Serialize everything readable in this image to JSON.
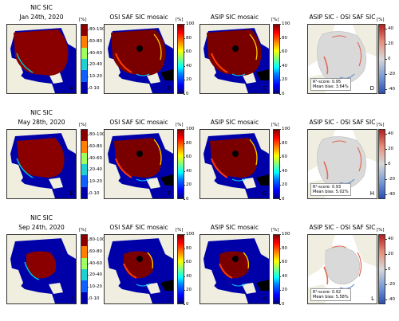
{
  "unit": "[%]",
  "rows": [
    {
      "nic_title": [
        "NIC SIC",
        "Jan 24th, 2020"
      ],
      "osi_title": "OSI SAF SIC mosaic",
      "asip_title": "ASIP SIC mosaic",
      "diff_title": "ASIP SIC - OSI SAF SIC",
      "letters": [
        "A",
        "B",
        "C",
        "D"
      ],
      "r2_label": "R²-score: 0.95",
      "bias_label": "Mean bias: 3.64%"
    },
    {
      "nic_title": [
        "NIC SIC",
        "May 28th, 2020"
      ],
      "osi_title": "OSI SAF SIC mosaic",
      "asip_title": "ASIP SIC mosaic",
      "diff_title": "ASIP SIC - OSI SAF SIC",
      "letters": [
        "E",
        "F",
        "G",
        "H"
      ],
      "r2_label": "R²-score: 0.93",
      "bias_label": "Mean bias: 5.02%"
    },
    {
      "nic_title": [
        "NIC SIC",
        "Sep 24th, 2020"
      ],
      "osi_title": "OSI SAF SIC mosaic",
      "asip_title": "ASIP SIC mosaic",
      "diff_title": "ASIP SIC - OSI SAF SIC",
      "letters": [
        "I",
        "J",
        "K",
        "L"
      ],
      "r2_label": "R²-score: 0.92",
      "bias_label": "Mean bias: 5.58%"
    }
  ],
  "nic_ticks": [
    "80-100",
    "60-80",
    "40-60",
    "20-40",
    "10-20",
    "0-10"
  ],
  "sic_ticks": [
    "100",
    "80",
    "60",
    "40",
    "20",
    "0"
  ],
  "diff_ticks": [
    "40",
    "20",
    "0",
    "-20",
    "-40"
  ],
  "colors": {
    "land": "#efeee0",
    "water": "#0000a8",
    "ice_high": "#8a0000",
    "no_data": "#000000",
    "diff_bg": "#d9d9d9",
    "diff_pos": "#e06b55",
    "diff_neg": "#5f86d0"
  }
}
